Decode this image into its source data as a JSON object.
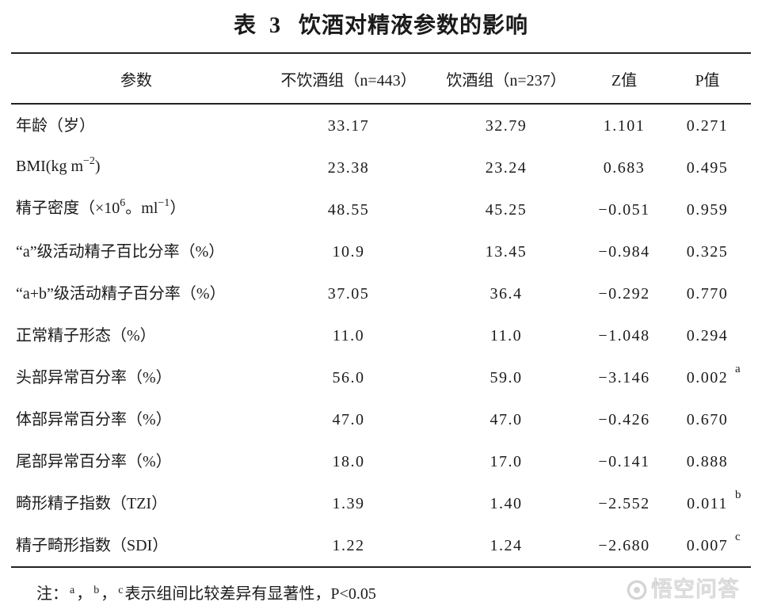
{
  "title": {
    "label": "表",
    "number": "3",
    "text": "饮酒对精液参数的影响"
  },
  "header": {
    "param": "参数",
    "nondrinker": "不饮酒组（n=443）",
    "drinker": "饮酒组（n=237）",
    "z": "Z值",
    "p": "P值"
  },
  "rows": [
    {
      "label": [
        "年龄（岁）"
      ],
      "nondrinker": "33.17",
      "drinker": "32.79",
      "z": "1.101",
      "p": "0.271"
    },
    {
      "label": [
        "BMI(kg m",
        "−2",
        ")"
      ],
      "nondrinker": "23.38",
      "drinker": "23.24",
      "z": "0.683",
      "p": "0.495"
    },
    {
      "label": [
        "精子密度（×10",
        "6",
        "。ml",
        "−1",
        "）"
      ],
      "nondrinker": "48.55",
      "drinker": "45.25",
      "z": "−0.051",
      "p": "0.959"
    },
    {
      "label": [
        "“a”级活动精子百比分率（%）"
      ],
      "nondrinker": "10.9",
      "drinker": "13.45",
      "z": "−0.984",
      "p": "0.325"
    },
    {
      "label": [
        "“a+b”级活动精子百分率（%）"
      ],
      "nondrinker": "37.05",
      "drinker": "36.4",
      "z": "−0.292",
      "p": "0.770"
    },
    {
      "label": [
        "正常精子形态（%）"
      ],
      "nondrinker": "11.0",
      "drinker": "11.0",
      "z": "−1.048",
      "p": "0.294"
    },
    {
      "label": [
        "头部异常百分率（%）"
      ],
      "nondrinker": "56.0",
      "drinker": "59.0",
      "z": "−3.146",
      "p": "0.002",
      "p_mark": "a"
    },
    {
      "label": [
        "体部异常百分率（%）"
      ],
      "nondrinker": "47.0",
      "drinker": "47.0",
      "z": "−0.426",
      "p": "0.670"
    },
    {
      "label": [
        "尾部异常百分率（%）"
      ],
      "nondrinker": "18.0",
      "drinker": "17.0",
      "z": "−0.141",
      "p": "0.888"
    },
    {
      "label": [
        "畸形精子指数（TZI）"
      ],
      "nondrinker": "1.39",
      "drinker": "1.40",
      "z": "−2.552",
      "p": "0.011",
      "p_mark": "b"
    },
    {
      "label": [
        "精子畸形指数（SDI）"
      ],
      "nondrinker": "1.22",
      "drinker": "1.24",
      "z": "−2.680",
      "p": "0.007",
      "p_mark": "c"
    }
  ],
  "footnote": {
    "prefix": "注：",
    "marks": [
      "a",
      "b",
      "c"
    ],
    "separator": "，",
    "text": "表示组间比较差异有显著性，P<0.05"
  },
  "watermark": {
    "text": "悟空问答",
    "icon": "chat-bubble-icon"
  }
}
